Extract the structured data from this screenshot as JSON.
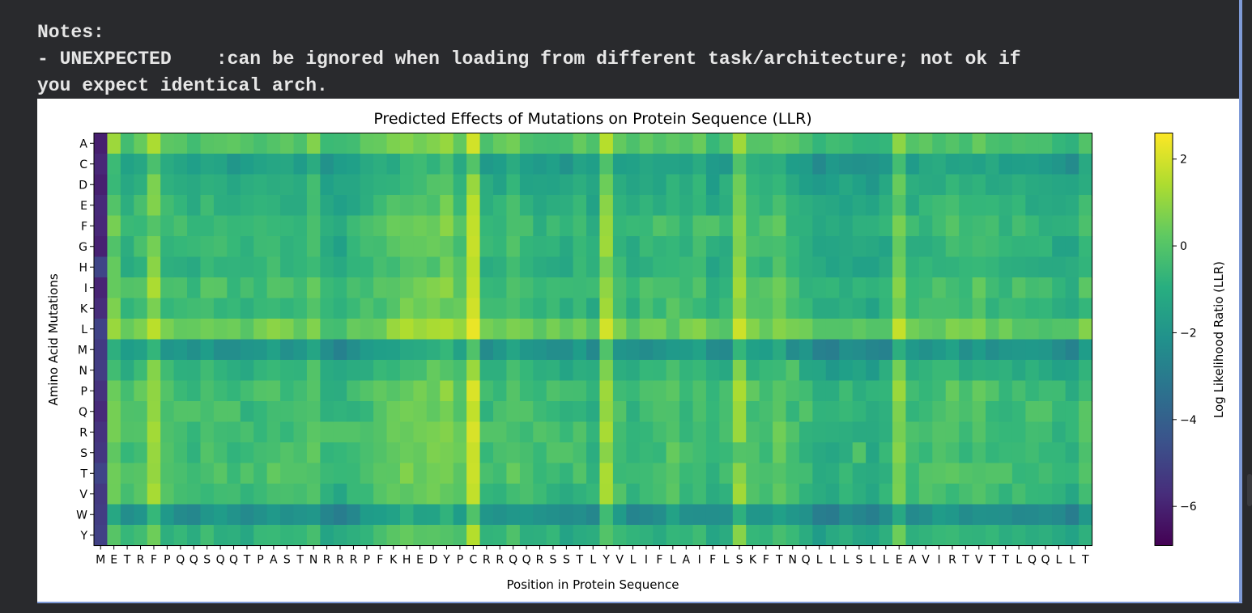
{
  "console": {
    "line1": "Notes:",
    "line2": "- UNEXPECTED    :can be ignored when loading from different task/architecture; not ok if",
    "line3": "you expect identical arch."
  },
  "chart_data": {
    "type": "heatmap",
    "title": "Predicted Effects of Mutations on Protein Sequence (LLR)",
    "xlabel": "Position in Protein Sequence",
    "ylabel": "Amino Acid Mutations",
    "colorbar_label": "Log Likelihood Ratio (LLR)",
    "colormap": "viridis",
    "clim": [
      -6.9,
      2.6
    ],
    "colorbar_ticks": [
      2,
      0,
      -2,
      -4,
      -6
    ],
    "sequence": [
      "M",
      "E",
      "T",
      "R",
      "F",
      "P",
      "Q",
      "Q",
      "S",
      "Q",
      "Q",
      "T",
      "P",
      "A",
      "S",
      "T",
      "N",
      "R",
      "R",
      "R",
      "P",
      "F",
      "K",
      "H",
      "E",
      "D",
      "Y",
      "P",
      "C",
      "R",
      "R",
      "Q",
      "Q",
      "R",
      "S",
      "S",
      "T",
      "L",
      "Y",
      "V",
      "L",
      "I",
      "F",
      "L",
      "A",
      "I",
      "F",
      "L",
      "S",
      "K",
      "F",
      "T",
      "N",
      "Q",
      "L",
      "L",
      "L",
      "S",
      "L",
      "L",
      "E",
      "A",
      "V",
      "I",
      "R",
      "T",
      "V",
      "T",
      "T",
      "L",
      "Q",
      "Q",
      "L",
      "L",
      "T"
    ],
    "amino_acids": [
      "A",
      "C",
      "D",
      "E",
      "F",
      "G",
      "H",
      "I",
      "K",
      "L",
      "M",
      "N",
      "P",
      "Q",
      "R",
      "S",
      "T",
      "V",
      "W",
      "Y"
    ],
    "column_base": [
      -5.5,
      0.3,
      -0.6,
      -0.3,
      0.9,
      -0.4,
      -0.6,
      -0.7,
      -0.4,
      -0.5,
      -0.7,
      -0.8,
      -0.6,
      -0.3,
      -0.6,
      -0.7,
      -0.1,
      -1.0,
      -1.1,
      -0.8,
      -0.5,
      -0.3,
      0.0,
      0.3,
      0.2,
      0.3,
      0.5,
      0.0,
      1.6,
      -0.7,
      -0.6,
      -0.2,
      -0.6,
      -0.8,
      -0.7,
      -0.9,
      -0.6,
      -1.0,
      1.0,
      -0.5,
      -0.8,
      -0.6,
      -0.6,
      -0.2,
      -0.6,
      -0.4,
      -1.0,
      -0.7,
      0.9,
      -0.3,
      -0.4,
      0.0,
      -0.6,
      -0.8,
      -1.2,
      -1.2,
      -1.0,
      -1.1,
      -1.2,
      -1.0,
      0.6,
      -0.7,
      -0.6,
      -0.5,
      -0.3,
      -0.6,
      -0.3,
      -0.6,
      -0.8,
      -0.6,
      -0.7,
      -0.8,
      -1.0,
      -1.1,
      -0.4
    ],
    "row_offset": [
      0.6,
      -0.9,
      -0.5,
      -0.2,
      0.1,
      -0.1,
      -0.2,
      0.3,
      0.1,
      1.0,
      -1.4,
      -0.3,
      0.3,
      0.2,
      0.3,
      0.2,
      0.3,
      0.1,
      -1.5,
      -0.2
    ],
    "wildtype_llr": 0
  }
}
